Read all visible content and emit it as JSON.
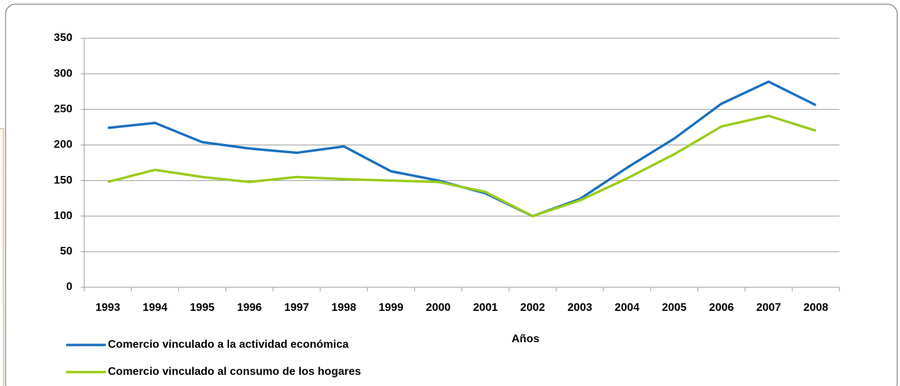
{
  "chart_data": {
    "type": "line",
    "x_label": "Años",
    "categories": [
      "1993",
      "1994",
      "1995",
      "1996",
      "1997",
      "1998",
      "1999",
      "2000",
      "2001",
      "2002",
      "2003",
      "2004",
      "2005",
      "2006",
      "2007",
      "2008"
    ],
    "series": [
      {
        "name": "Comercio vinculado a la actividad económica",
        "color": "#1a6fc0",
        "values": [
          224,
          231,
          204,
          195,
          189,
          198,
          163,
          150,
          132,
          100,
          124,
          168,
          209,
          258,
          289,
          256
        ]
      },
      {
        "name": "Comercio vinculado al consumo de los hogares",
        "color": "#9bcb1c",
        "values": [
          148,
          165,
          155,
          148,
          155,
          152,
          150,
          148,
          134,
          100,
          122,
          153,
          187,
          226,
          241,
          220
        ]
      }
    ],
    "ylim": [
      0,
      350
    ],
    "yticks": [
      0,
      50,
      100,
      150,
      200,
      250,
      300,
      350
    ],
    "grid": true
  }
}
